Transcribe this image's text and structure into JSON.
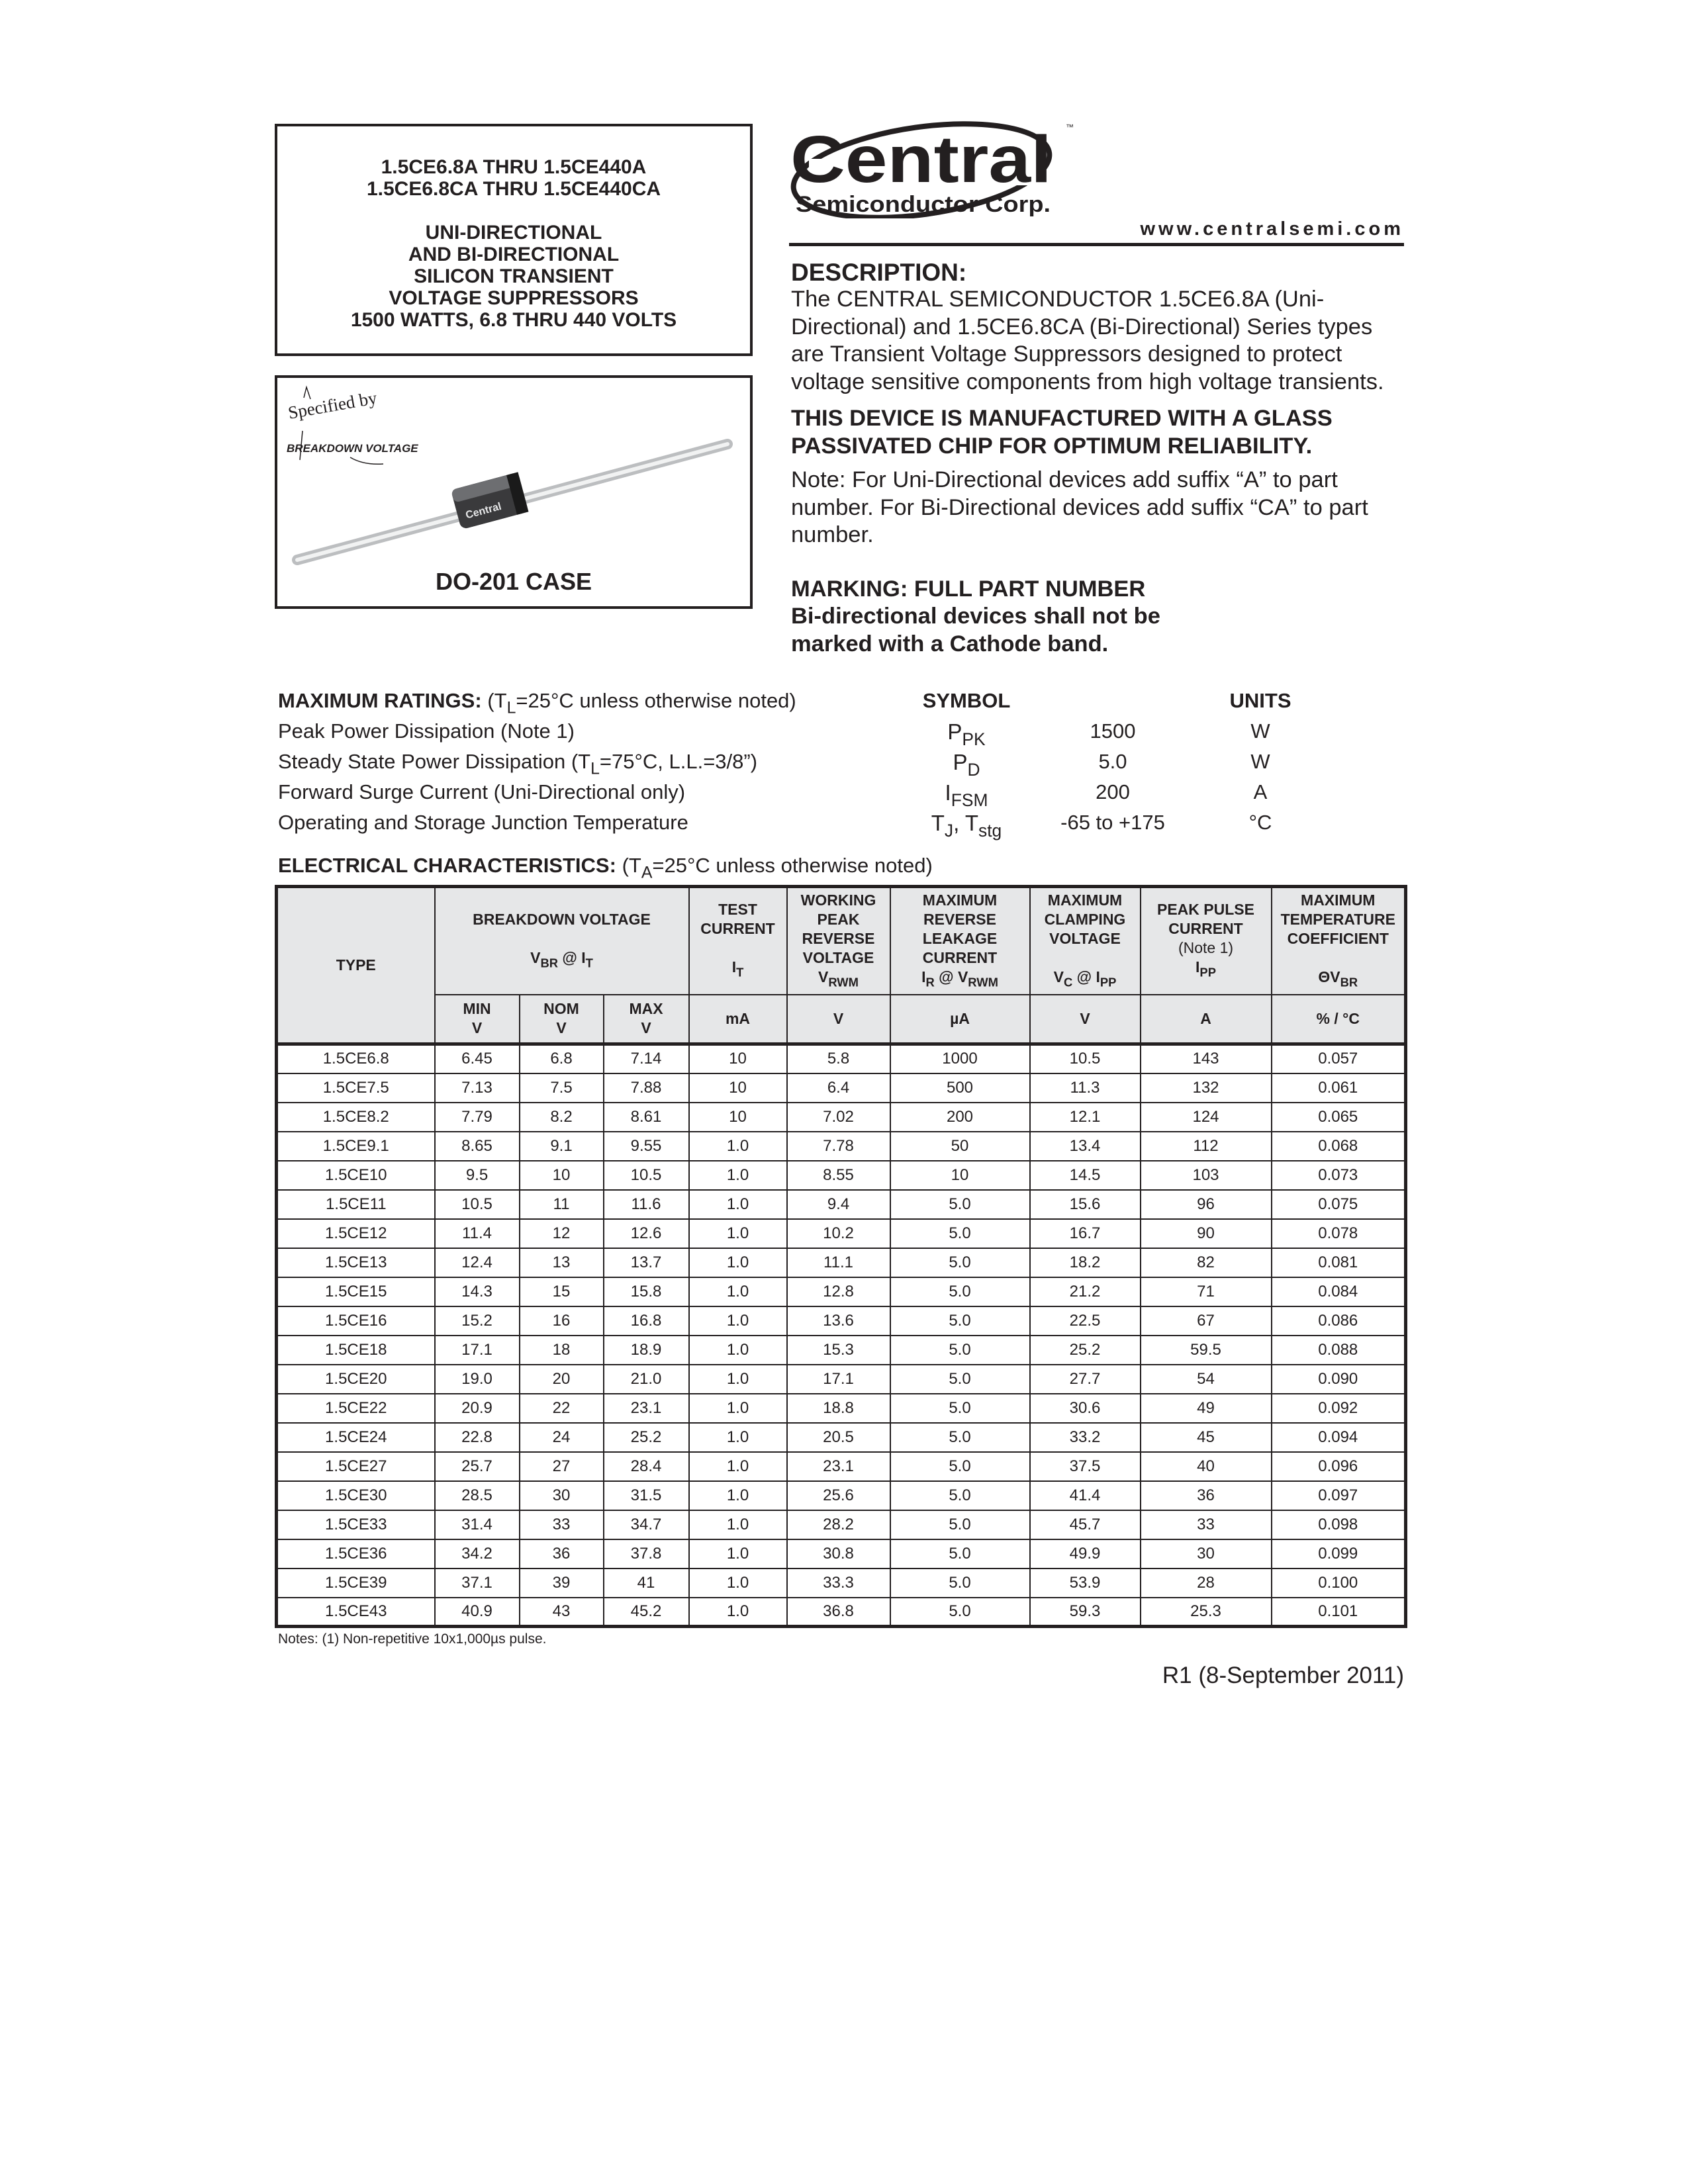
{
  "title_box": {
    "lines_top": [
      "1.5CE6.8A THRU 1.5CE440A",
      "1.5CE6.8CA THRU 1.5CE440CA"
    ],
    "lines_bottom": [
      "UNI-DIRECTIONAL",
      "AND BI-DIRECTIONAL",
      "SILICON TRANSIENT",
      "VOLTAGE SUPPRESSORS",
      "1500 WATTS, 6.8 THRU 440 VOLTS"
    ]
  },
  "image_box": {
    "specified_by": "Specified by",
    "breakdown_voltage": "BREAKDOWN VOLTAGE",
    "body_marking": "Central",
    "case_label": "DO-201 CASE"
  },
  "logo": {
    "name": "Central",
    "sub": "Semiconductor Corp.",
    "tm": "™"
  },
  "url": "www.centralsemi.com",
  "description": {
    "heading": "DESCRIPTION:",
    "body": "The CENTRAL SEMICONDUCTOR 1.5CE6.8A (Uni-Directional) and 1.5CE6.8CA (Bi-Directional) Series types are Transient Voltage Suppressors designed to protect voltage sensitive components from high voltage transients.",
    "glass_note": "THIS DEVICE IS MANUFACTURED WITH A GLASS PASSIVATED CHIP FOR OPTIMUM RELIABILITY.",
    "note": "Note: For Uni-Directional devices add suffix “A” to part number. For Bi-Directional devices add suffix “CA” to part number.",
    "marking_1": "MARKING: FULL PART NUMBER",
    "marking_2": "Bi-directional devices shall not be",
    "marking_3": "marked with a Cathode band."
  },
  "max_ratings": {
    "heading": "MAXIMUM RATINGS:",
    "condition_pre": "(T",
    "condition_sub": "L",
    "condition_post": "=25°C unless otherwise noted)",
    "symbol_header": "SYMBOL",
    "units_header": "UNITS",
    "rows": [
      {
        "label": "Peak Power Dissipation (Note 1)",
        "label_sub": "",
        "label_post": "",
        "sym": "P",
        "sym_sub": "PK",
        "sym_post": "",
        "sym_sub2": "",
        "value": "1500",
        "unit": "W"
      },
      {
        "label": "Steady State Power Dissipation (T",
        "label_sub": "L",
        "label_post": "=75°C, L.L.=3/8”)",
        "sym": "P",
        "sym_sub": "D",
        "sym_post": "",
        "sym_sub2": "",
        "value": "5.0",
        "unit": "W"
      },
      {
        "label": "Forward Surge Current (Uni-Directional only)",
        "label_sub": "",
        "label_post": "",
        "sym": "I",
        "sym_sub": "FSM",
        "sym_post": "",
        "sym_sub2": "",
        "value": "200",
        "unit": "A"
      },
      {
        "label": "Operating and Storage Junction Temperature",
        "label_sub": "",
        "label_post": "",
        "sym": "T",
        "sym_sub": "J",
        "sym_post": ", T",
        "sym_sub2": "stg",
        "value": "-65 to +175",
        "unit": "°C"
      }
    ]
  },
  "electrical": {
    "heading": "ELECTRICAL CHARACTERISTICS:",
    "condition_pre": "(T",
    "condition_sub": "A",
    "condition_post": "=25°C unless otherwise noted)",
    "headers": {
      "type": "TYPE",
      "breakdown": "BREAKDOWN VOLTAGE",
      "breakdown_sym": "V",
      "breakdown_sym_sub": "BR",
      "breakdown_sym_mid": " @ I",
      "breakdown_sym_sub2": "T",
      "test": "TEST CURRENT",
      "test_sym": "I",
      "test_sym_sub": "T",
      "working": "WORKING PEAK REVERSE VOLTAGE",
      "working_sym": "V",
      "working_sym_sub": "RWM",
      "leakage": "MAXIMUM REVERSE LEAKAGE CURRENT",
      "leakage_sym": "I",
      "leakage_sym_sub": "R",
      "leakage_sym_mid": " @ V",
      "leakage_sym_sub2": "RWM",
      "clamping": "MAXIMUM CLAMPING VOLTAGE",
      "clamping_sym": "V",
      "clamping_sym_sub": "C",
      "clamping_sym_mid": " @ I",
      "clamping_sym_sub2": "PP",
      "pulse": "PEAK PULSE CURRENT",
      "pulse_note": "(Note 1)",
      "pulse_sym": "I",
      "pulse_sym_sub": "PP",
      "tempco": "MAXIMUM TEMPERATURE COEFFICIENT",
      "tempco_sym": "ΘV",
      "tempco_sym_sub": "BR",
      "min": "MIN",
      "nom": "NOM",
      "max": "MAX",
      "v": "V",
      "unit_ma": "mA",
      "unit_v": "V",
      "unit_ua": "µA",
      "unit_a": "A",
      "unit_pct": "% / °C"
    },
    "rows": [
      [
        "1.5CE6.8",
        "6.45",
        "6.8",
        "7.14",
        "10",
        "5.8",
        "1000",
        "10.5",
        "143",
        "0.057"
      ],
      [
        "1.5CE7.5",
        "7.13",
        "7.5",
        "7.88",
        "10",
        "6.4",
        "500",
        "11.3",
        "132",
        "0.061"
      ],
      [
        "1.5CE8.2",
        "7.79",
        "8.2",
        "8.61",
        "10",
        "7.02",
        "200",
        "12.1",
        "124",
        "0.065"
      ],
      [
        "1.5CE9.1",
        "8.65",
        "9.1",
        "9.55",
        "1.0",
        "7.78",
        "50",
        "13.4",
        "112",
        "0.068"
      ],
      [
        "1.5CE10",
        "9.5",
        "10",
        "10.5",
        "1.0",
        "8.55",
        "10",
        "14.5",
        "103",
        "0.073"
      ],
      [
        "1.5CE11",
        "10.5",
        "11",
        "11.6",
        "1.0",
        "9.4",
        "5.0",
        "15.6",
        "96",
        "0.075"
      ],
      [
        "1.5CE12",
        "11.4",
        "12",
        "12.6",
        "1.0",
        "10.2",
        "5.0",
        "16.7",
        "90",
        "0.078"
      ],
      [
        "1.5CE13",
        "12.4",
        "13",
        "13.7",
        "1.0",
        "11.1",
        "5.0",
        "18.2",
        "82",
        "0.081"
      ],
      [
        "1.5CE15",
        "14.3",
        "15",
        "15.8",
        "1.0",
        "12.8",
        "5.0",
        "21.2",
        "71",
        "0.084"
      ],
      [
        "1.5CE16",
        "15.2",
        "16",
        "16.8",
        "1.0",
        "13.6",
        "5.0",
        "22.5",
        "67",
        "0.086"
      ],
      [
        "1.5CE18",
        "17.1",
        "18",
        "18.9",
        "1.0",
        "15.3",
        "5.0",
        "25.2",
        "59.5",
        "0.088"
      ],
      [
        "1.5CE20",
        "19.0",
        "20",
        "21.0",
        "1.0",
        "17.1",
        "5.0",
        "27.7",
        "54",
        "0.090"
      ],
      [
        "1.5CE22",
        "20.9",
        "22",
        "23.1",
        "1.0",
        "18.8",
        "5.0",
        "30.6",
        "49",
        "0.092"
      ],
      [
        "1.5CE24",
        "22.8",
        "24",
        "25.2",
        "1.0",
        "20.5",
        "5.0",
        "33.2",
        "45",
        "0.094"
      ],
      [
        "1.5CE27",
        "25.7",
        "27",
        "28.4",
        "1.0",
        "23.1",
        "5.0",
        "37.5",
        "40",
        "0.096"
      ],
      [
        "1.5CE30",
        "28.5",
        "30",
        "31.5",
        "1.0",
        "25.6",
        "5.0",
        "41.4",
        "36",
        "0.097"
      ],
      [
        "1.5CE33",
        "31.4",
        "33",
        "34.7",
        "1.0",
        "28.2",
        "5.0",
        "45.7",
        "33",
        "0.098"
      ],
      [
        "1.5CE36",
        "34.2",
        "36",
        "37.8",
        "1.0",
        "30.8",
        "5.0",
        "49.9",
        "30",
        "0.099"
      ],
      [
        "1.5CE39",
        "37.1",
        "39",
        "41",
        "1.0",
        "33.3",
        "5.0",
        "53.9",
        "28",
        "0.100"
      ],
      [
        "1.5CE43",
        "40.9",
        "43",
        "45.2",
        "1.0",
        "36.8",
        "5.0",
        "59.3",
        "25.3",
        "0.101"
      ]
    ]
  },
  "notes": "Notes: (1) Non-repetitive 10x1,000µs pulse.",
  "revision": "R1 (8-September 2011)"
}
